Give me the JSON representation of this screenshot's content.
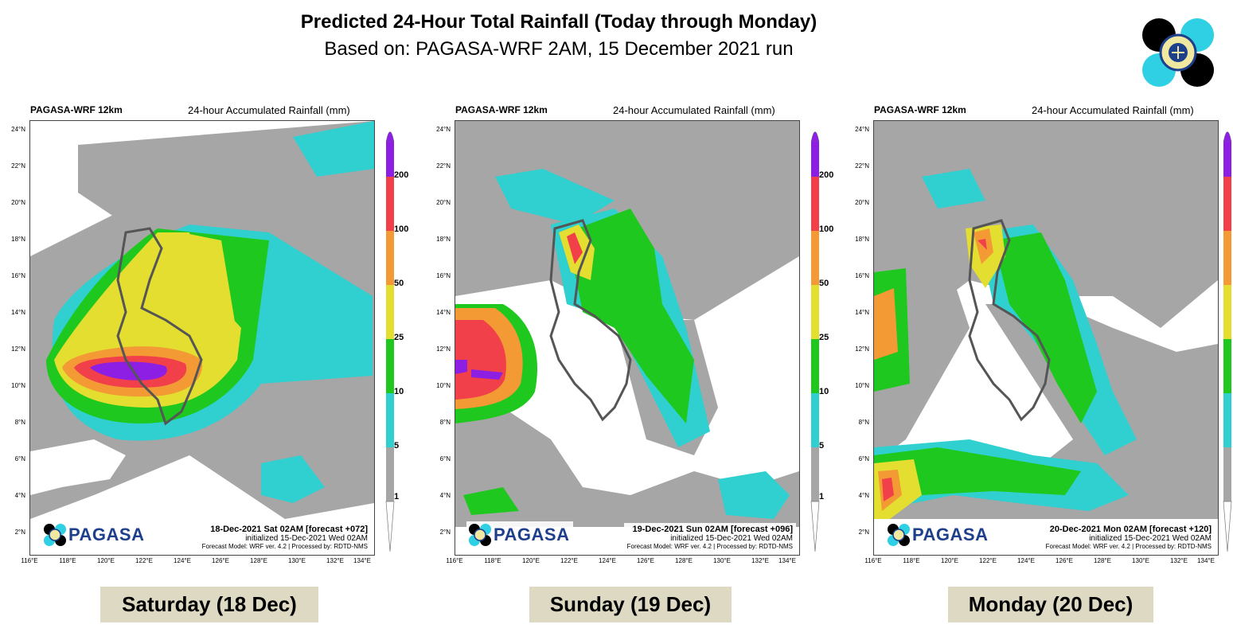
{
  "header": {
    "title": "Predicted 24-Hour Total Rainfall (Today through Monday)",
    "subtitle": "Based on: PAGASA-WRF 2AM, 15 December 2021 run"
  },
  "common": {
    "model_label": "PAGASA-WRF 12km",
    "variable_label": "24-hour Accumulated Rainfall (mm)",
    "initialized": "initialized 15-Dec-2021 Wed 02AM",
    "forecast_model": "Forecast Model: WRF ver. 4.2 | Processed by: RDTD-NMS",
    "brand": "PAGASA",
    "lat_labels": [
      "24°N",
      "22°N",
      "20°N",
      "18°N",
      "16°N",
      "14°N",
      "12°N",
      "10°N",
      "8°N",
      "6°N",
      "4°N",
      "2°N"
    ],
    "lon_labels": [
      "116°E",
      "118°E",
      "120°E",
      "122°E",
      "124°E",
      "126°E",
      "128°E",
      "130°E",
      "132°E",
      "134°E"
    ]
  },
  "colorbar": {
    "levels": [
      "200",
      "100",
      "50",
      "25",
      "10",
      "5",
      "1"
    ],
    "colors": {
      "c1": "#a6a6a6",
      "c5": "#2fd0cf",
      "c10": "#1ec81e",
      "c25": "#e3de30",
      "c50": "#f39a35",
      "c100": "#f2404a",
      "c200": "#8c1fe3"
    }
  },
  "panels": [
    {
      "valid": "18-Dec-2021 Sat 02AM [forecast +072]",
      "day_label": "Saturday (18 Dec)"
    },
    {
      "valid": "19-Dec-2021 Sun 02AM [forecast +096]",
      "day_label": "Sunday (19 Dec)"
    },
    {
      "valid": "20-Dec-2021 Mon 02AM [forecast +120]",
      "day_label": "Monday (20 Dec)"
    }
  ]
}
